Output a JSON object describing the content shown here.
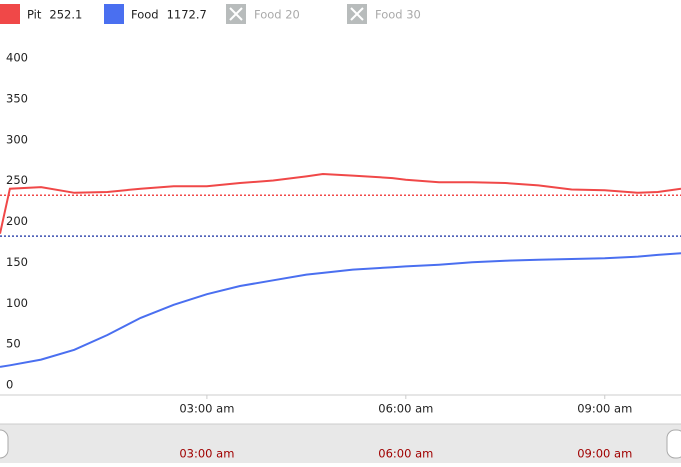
{
  "chart_data": {
    "type": "line",
    "x": [
      -0.12,
      0.03,
      0.5,
      1,
      1.5,
      2,
      2.5,
      3,
      3.5,
      4,
      4.5,
      4.75,
      5.2,
      5.8,
      6,
      6.5,
      7,
      7.5,
      8,
      8.5,
      9,
      9.5,
      9.8,
      10.15
    ],
    "series": [
      {
        "name": "Pit",
        "current": 252.1,
        "color": "#f04848",
        "values": [
          190,
          245,
          247,
          240,
          241,
          245,
          248,
          248,
          252,
          255,
          260,
          263,
          261,
          258,
          256,
          253,
          253,
          252,
          249,
          244,
          243,
          240,
          241,
          245
        ]
      },
      {
        "name": "Food",
        "current": 1172.7,
        "color": "#4a6ff0",
        "values": [
          27,
          29,
          36,
          48,
          66,
          87,
          103,
          116,
          126,
          133,
          140,
          142,
          146,
          149,
          150,
          152,
          155,
          157,
          158,
          159,
          160,
          162,
          164,
          166
        ]
      }
    ],
    "hidden_series": [
      "Food 20",
      "Food 30"
    ],
    "reference_lines": [
      {
        "value": 237,
        "color": "#f04848"
      },
      {
        "value": 187,
        "color": "#3a4fb0"
      }
    ],
    "xlim": [
      -0.12,
      10.15
    ],
    "xticks": [
      {
        "value": 3,
        "label": "03:00 am"
      },
      {
        "value": 6,
        "label": "06:00 am"
      },
      {
        "value": 9,
        "label": "09:00 am"
      }
    ],
    "ylim": [
      0,
      400
    ],
    "yticks": [
      0,
      50,
      100,
      150,
      200,
      250,
      300,
      350,
      400
    ],
    "grid": false
  }
}
